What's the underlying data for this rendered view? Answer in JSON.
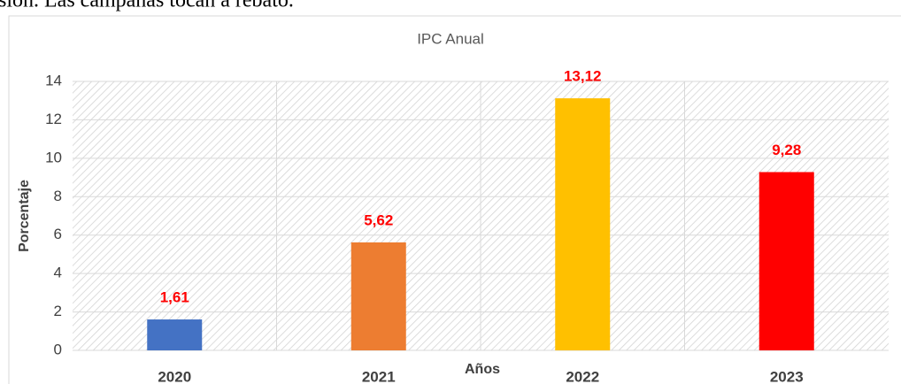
{
  "header_text": "sión. Las campanas tocan a rebato.",
  "chart_data": {
    "type": "bar",
    "title": "IPC Anual",
    "x_label": "Años",
    "y_label": "Porcentaje",
    "categories": [
      "2020",
      "2021",
      "2022",
      "2023"
    ],
    "values": [
      1.61,
      5.62,
      13.12,
      9.28
    ],
    "value_labels": [
      "1,61",
      "5,62",
      "13,12",
      "9,28"
    ],
    "colors": [
      "#4472c4",
      "#ed7d31",
      "#ffc000",
      "#ff0000"
    ],
    "ylim": [
      0,
      14
    ],
    "yticks": [
      0,
      2,
      4,
      6,
      8,
      10,
      12,
      14
    ],
    "grid": true
  }
}
